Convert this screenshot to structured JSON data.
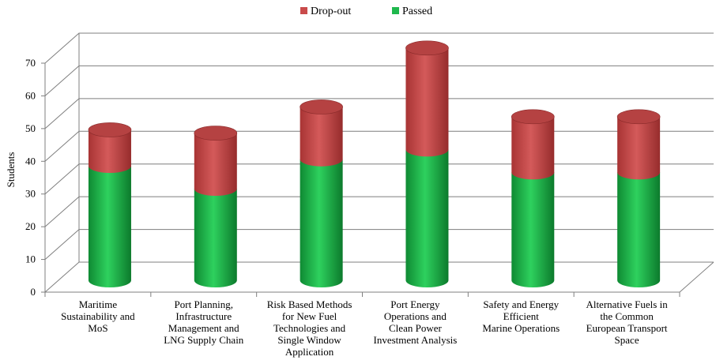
{
  "chart_data": {
    "type": "bar",
    "stacked": true,
    "style": "3d-cylinder",
    "title": "",
    "xlabel": "",
    "ylabel": "Students",
    "ylim": [
      0,
      70
    ],
    "yticks": [
      0,
      10,
      20,
      30,
      40,
      50,
      60,
      70
    ],
    "grid": true,
    "legend_position": "top",
    "categories": [
      [
        "Maritime",
        "Sustainability and",
        "MoS"
      ],
      [
        "Port Planning,",
        "Infrastructure",
        "Management and",
        "LNG Supply Chain"
      ],
      [
        "Risk Based Methods",
        "for New Fuel",
        "Technologies and",
        "Single Window",
        "Application"
      ],
      [
        "Port Energy",
        "Operations and",
        "Clean Power",
        "Investment Analysis"
      ],
      [
        "Safety and Energy",
        "Efficient",
        "Marine Operations"
      ],
      [
        "Alternative Fuels in",
        "the Common",
        "European Transport",
        "Space"
      ]
    ],
    "series": [
      {
        "name": "Passed",
        "color": "#1fb84d",
        "values": [
          35,
          28,
          37,
          40,
          33,
          33
        ]
      },
      {
        "name": "Drop-out",
        "color": "#c94b4b",
        "values": [
          11,
          17,
          16,
          31,
          17,
          17
        ]
      }
    ],
    "legend_order": [
      "Drop-out",
      "Passed"
    ]
  }
}
